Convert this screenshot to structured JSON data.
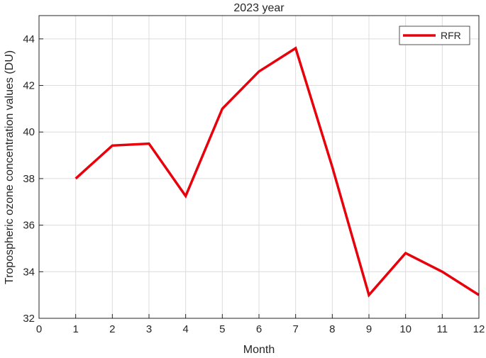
{
  "chart_data": {
    "type": "line",
    "title": "2023 year",
    "xlabel": "Month",
    "ylabel": "Tropospheric ozone concentration values (DU)",
    "xlim": [
      0,
      12
    ],
    "ylim": [
      32,
      45
    ],
    "xticks": [
      0,
      1,
      2,
      3,
      4,
      5,
      6,
      7,
      8,
      9,
      10,
      11,
      12
    ],
    "yticks": [
      32,
      34,
      36,
      38,
      40,
      42,
      44
    ],
    "grid": true,
    "legend_position": "top-right",
    "series": [
      {
        "name": "RFR",
        "color": "#e8000b",
        "x": [
          1,
          2,
          3,
          4,
          5,
          6,
          7,
          8,
          9,
          10,
          11,
          12
        ],
        "y": [
          38.0,
          39.42,
          39.5,
          37.25,
          41.0,
          42.6,
          43.6,
          38.5,
          33.0,
          34.8,
          34.0,
          33.0
        ]
      }
    ]
  }
}
